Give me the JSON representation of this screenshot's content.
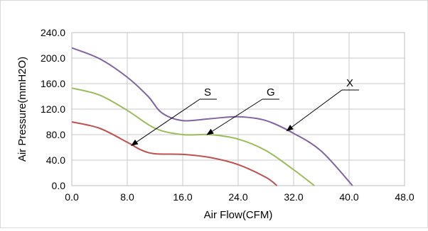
{
  "chart_data": {
    "type": "line",
    "title": "",
    "xlabel": "Air Flow(CFM)",
    "ylabel": "Air Pressure(mmH2O)",
    "xlim": [
      0,
      48
    ],
    "ylim": [
      0,
      240
    ],
    "grid": true,
    "legend": "none",
    "x_ticks": [
      "0.0",
      "8.0",
      "16.0",
      "24.0",
      "32.0",
      "40.0",
      "48.0"
    ],
    "y_ticks": [
      "0.0",
      "40.0",
      "80.0",
      "120.0",
      "160.0",
      "200.0",
      "240.0"
    ],
    "series": [
      {
        "name": "S",
        "color": "#c0504d",
        "points": [
          [
            0,
            100
          ],
          [
            4,
            90
          ],
          [
            8,
            68
          ],
          [
            10,
            56
          ],
          [
            12,
            50
          ],
          [
            16,
            49
          ],
          [
            20,
            44
          ],
          [
            24,
            33
          ],
          [
            28,
            13
          ],
          [
            29.6,
            0
          ]
        ]
      },
      {
        "name": "G",
        "color": "#9bbb59",
        "points": [
          [
            0,
            153
          ],
          [
            4,
            142
          ],
          [
            8,
            118
          ],
          [
            12,
            90
          ],
          [
            16,
            80
          ],
          [
            20,
            80
          ],
          [
            24,
            73
          ],
          [
            28,
            55
          ],
          [
            32,
            25
          ],
          [
            35,
            0
          ]
        ]
      },
      {
        "name": "X",
        "color": "#8064a2",
        "points": [
          [
            0,
            216
          ],
          [
            4,
            199
          ],
          [
            8,
            170
          ],
          [
            11,
            140
          ],
          [
            13,
            114
          ],
          [
            16,
            102
          ],
          [
            20,
            105
          ],
          [
            24,
            108
          ],
          [
            28,
            102
          ],
          [
            32,
            82
          ],
          [
            36,
            54
          ],
          [
            40.5,
            0
          ]
        ]
      }
    ],
    "annotations": [
      {
        "text": "S",
        "target_series": "S",
        "target_point": [
          8.6,
          63
        ]
      },
      {
        "text": "G",
        "target_series": "G",
        "target_point": [
          19.5,
          80
        ]
      },
      {
        "text": "X",
        "target_series": "X",
        "target_point": [
          31,
          86
        ]
      }
    ]
  }
}
